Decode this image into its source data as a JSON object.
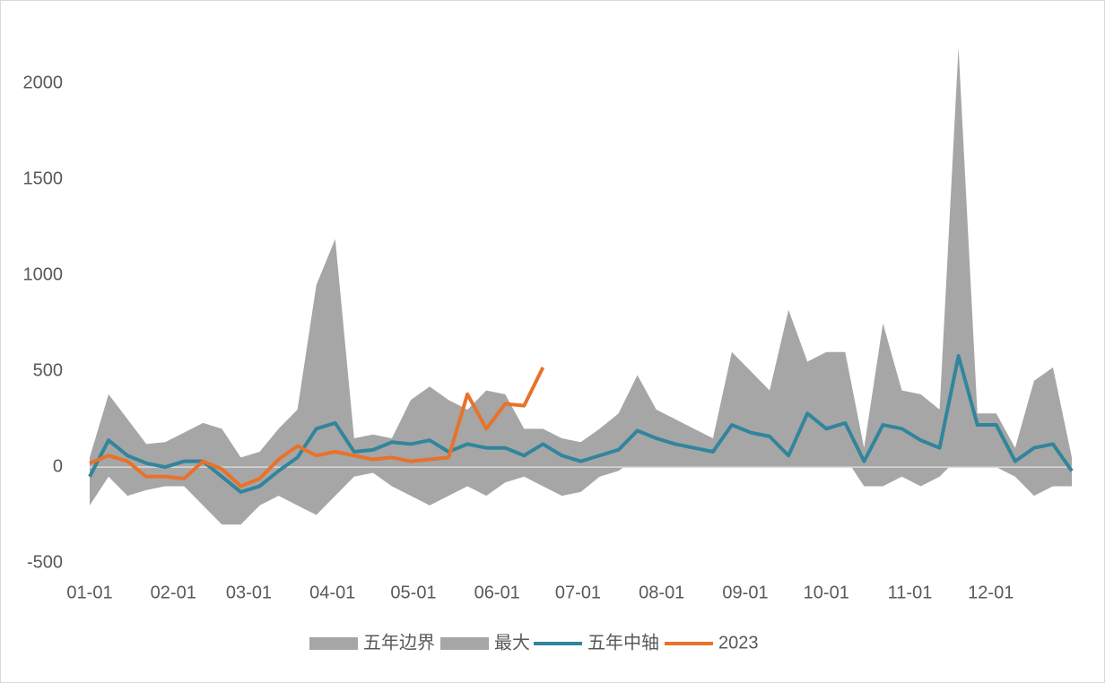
{
  "chart_data": {
    "type": "line",
    "x": [
      "01-01",
      "01-08",
      "01-15",
      "01-22",
      "01-29",
      "02-05",
      "02-12",
      "02-19",
      "02-26",
      "03-05",
      "03-12",
      "03-19",
      "03-26",
      "04-02",
      "04-09",
      "04-16",
      "04-23",
      "04-30",
      "05-07",
      "05-14",
      "05-21",
      "05-28",
      "06-04",
      "06-11",
      "06-18",
      "06-25",
      "07-02",
      "07-09",
      "07-16",
      "07-23",
      "07-30",
      "08-06",
      "08-13",
      "08-20",
      "08-27",
      "09-03",
      "09-10",
      "09-17",
      "09-24",
      "10-01",
      "10-08",
      "10-15",
      "10-22",
      "10-29",
      "11-05",
      "11-12",
      "11-19",
      "11-26",
      "12-03",
      "12-10",
      "12-17",
      "12-24",
      "12-31"
    ],
    "series": [
      {
        "name": "五年边界",
        "type": "area",
        "color": "#a6a6a6",
        "values": [
          -200,
          -50,
          -150,
          -120,
          -100,
          -100,
          -200,
          -300,
          -300,
          -200,
          -150,
          -200,
          -250,
          -150,
          -50,
          -30,
          -100,
          -150,
          -200,
          -150,
          -100,
          -150,
          -80,
          -50,
          -100,
          -150,
          -130,
          -50,
          -20,
          50,
          0,
          30,
          20,
          0,
          50,
          50,
          20,
          30,
          50,
          30,
          50,
          -100,
          -100,
          -50,
          -100,
          -50,
          50,
          50,
          0,
          -50,
          -150,
          -100,
          -100
        ]
      },
      {
        "name": "最大",
        "type": "area",
        "color": "#a6a6a6",
        "values": [
          50,
          380,
          250,
          120,
          130,
          180,
          230,
          200,
          50,
          80,
          200,
          300,
          950,
          1190,
          150,
          170,
          150,
          350,
          420,
          350,
          300,
          400,
          380,
          200,
          200,
          150,
          130,
          200,
          280,
          480,
          300,
          250,
          200,
          150,
          600,
          500,
          400,
          820,
          550,
          600,
          600,
          100,
          750,
          400,
          380,
          300,
          2190,
          280,
          280,
          100,
          450,
          520,
          50
        ]
      },
      {
        "name": "五年中轴",
        "type": "line",
        "color": "#31859c",
        "values": [
          -50,
          140,
          60,
          20,
          0,
          30,
          30,
          -50,
          -130,
          -100,
          -20,
          50,
          200,
          230,
          80,
          90,
          130,
          120,
          140,
          80,
          120,
          100,
          100,
          60,
          120,
          60,
          30,
          60,
          90,
          190,
          150,
          120,
          100,
          80,
          220,
          180,
          160,
          60,
          280,
          200,
          230,
          30,
          220,
          200,
          140,
          100,
          580,
          220,
          220,
          30,
          100,
          120,
          -20
        ]
      },
      {
        "name": "2023",
        "type": "line",
        "color": "#e8722a",
        "values": [
          20,
          60,
          30,
          -50,
          -50,
          -60,
          30,
          -10,
          -100,
          -60,
          40,
          110,
          60,
          80,
          60,
          40,
          50,
          30,
          40,
          50,
          380,
          200,
          330,
          320,
          520,
          null,
          null,
          null,
          null,
          null,
          null,
          null,
          null,
          null,
          null,
          null,
          null,
          null,
          null,
          null,
          null,
          null,
          null,
          null,
          null,
          null,
          null,
          null,
          null,
          null,
          null,
          null,
          null
        ]
      }
    ],
    "xticks": [
      "01-01",
      "02-01",
      "03-01",
      "04-01",
      "05-01",
      "06-01",
      "07-01",
      "08-01",
      "09-01",
      "10-01",
      "11-01",
      "12-01"
    ],
    "ylim": [
      -500,
      2250
    ],
    "yticks": [
      -500,
      0,
      500,
      1000,
      1500,
      2000
    ],
    "grid": false
  }
}
